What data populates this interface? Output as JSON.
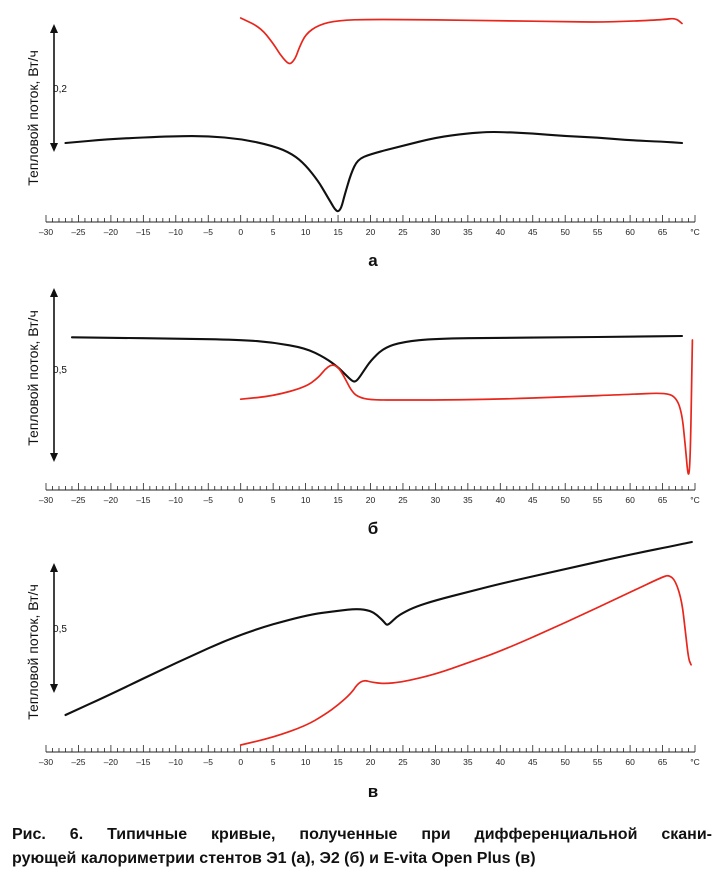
{
  "colors": {
    "black_curve": "#111111",
    "red_curve": "#e8261c",
    "axis": "#222222"
  },
  "chart_data": [
    {
      "type": "line",
      "panel": "а",
      "ylabel": "Тепловой поток, Вт/ч",
      "y_mark": "0,2",
      "xlim": [
        -30,
        70
      ],
      "x_ticks": [
        "–30",
        "–25",
        "–20",
        "–15",
        "–10",
        "–5",
        "0",
        "5",
        "10",
        "15",
        "20",
        "25",
        "30",
        "35",
        "40",
        "45",
        "50",
        "55",
        "60",
        "65",
        "°C"
      ],
      "series": [
        {
          "color": "black",
          "x": [
            -27,
            -20,
            -10,
            -5,
            0,
            5,
            8,
            10,
            12,
            13,
            14,
            14.5,
            15,
            15.5,
            16,
            17,
            18,
            20,
            25,
            30,
            35,
            38,
            40,
            45,
            50,
            55,
            60,
            65,
            68
          ],
          "y": [
            0.5,
            0.47,
            0.45,
            0.45,
            0.47,
            0.52,
            0.58,
            0.66,
            0.78,
            0.86,
            0.94,
            0.98,
            1.0,
            0.97,
            0.88,
            0.72,
            0.62,
            0.58,
            0.52,
            0.46,
            0.43,
            0.42,
            0.42,
            0.43,
            0.45,
            0.46,
            0.48,
            0.49,
            0.5
          ]
        },
        {
          "color": "red",
          "x": [
            0,
            3,
            5,
            6,
            7,
            7.5,
            8,
            8.5,
            9,
            10,
            12,
            15,
            20,
            30,
            40,
            50,
            55,
            60,
            65,
            67,
            68
          ],
          "y": [
            0.0,
            0.2,
            0.55,
            0.78,
            0.95,
            1.0,
            0.96,
            0.85,
            0.65,
            0.35,
            0.15,
            0.05,
            0.03,
            0.04,
            0.06,
            0.08,
            0.09,
            0.07,
            0.04,
            0.0,
            0.12
          ]
        }
      ]
    },
    {
      "type": "line",
      "panel": "б",
      "ylabel": "Тепловой поток, Вт/ч",
      "y_mark": "0,5",
      "xlim": [
        -30,
        70
      ],
      "x_ticks": [
        "–30",
        "–25",
        "–20",
        "–15",
        "–10",
        "–5",
        "0",
        "5",
        "10",
        "15",
        "20",
        "25",
        "30",
        "35",
        "40",
        "45",
        "50",
        "55",
        "60",
        "65",
        "°C"
      ],
      "series": [
        {
          "color": "black",
          "x": [
            -26,
            -20,
            -10,
            0,
            5,
            10,
            13,
            15,
            16,
            17,
            17.5,
            18,
            19,
            20,
            22,
            25,
            30,
            40,
            50,
            60,
            68
          ],
          "y": [
            0.48,
            0.49,
            0.5,
            0.52,
            0.56,
            0.65,
            0.8,
            0.95,
            1.05,
            1.15,
            1.18,
            1.15,
            1.0,
            0.85,
            0.65,
            0.55,
            0.5,
            0.49,
            0.48,
            0.47,
            0.46
          ]
        },
        {
          "color": "red",
          "x": [
            0,
            5,
            10,
            12,
            13,
            14,
            15,
            16,
            17,
            18,
            20,
            25,
            30,
            40,
            50,
            60,
            65,
            67,
            68,
            68.5,
            69,
            69.3,
            69.6
          ],
          "y": [
            1.03,
            0.99,
            0.88,
            0.76,
            0.66,
            0.6,
            0.63,
            0.76,
            0.92,
            1.0,
            1.04,
            1.04,
            1.04,
            1.03,
            1.0,
            0.97,
            0.95,
            0.99,
            1.2,
            1.6,
            2.05,
            1.7,
            0.3
          ]
        }
      ]
    },
    {
      "type": "line",
      "panel": "в",
      "ylabel": "Тепловой поток, Вт/ч",
      "y_mark": "0,5",
      "xlim": [
        -30,
        70
      ],
      "x_ticks": [
        "–30",
        "–25",
        "–20",
        "–15",
        "–10",
        "–5",
        "0",
        "5",
        "10",
        "15",
        "20",
        "25",
        "30",
        "35",
        "40",
        "45",
        "50",
        "55",
        "60",
        "65",
        "°C"
      ],
      "series": [
        {
          "color": "black",
          "x": [
            -27,
            -20,
            -10,
            0,
            10,
            15,
            18,
            20,
            21,
            22,
            22.5,
            23,
            24,
            25,
            27,
            30,
            35,
            40,
            50,
            60,
            68,
            69.5
          ],
          "y": [
            0.95,
            0.85,
            0.7,
            0.56,
            0.47,
            0.45,
            0.44,
            0.45,
            0.47,
            0.5,
            0.52,
            0.51,
            0.48,
            0.46,
            0.43,
            0.4,
            0.36,
            0.32,
            0.25,
            0.18,
            0.13,
            0.12
          ]
        },
        {
          "color": "red",
          "x": [
            0,
            5,
            10,
            13,
            15,
            17,
            18,
            19,
            20,
            22,
            25,
            30,
            35,
            40,
            50,
            60,
            65,
            66,
            67,
            68,
            68.5,
            69,
            69.4
          ],
          "y": [
            1.0,
            0.96,
            0.9,
            0.84,
            0.79,
            0.73,
            0.68,
            0.66,
            0.67,
            0.68,
            0.67,
            0.63,
            0.57,
            0.51,
            0.36,
            0.2,
            0.12,
            0.11,
            0.14,
            0.25,
            0.4,
            0.55,
            0.58
          ]
        }
      ]
    }
  ],
  "caption": {
    "line1": "Рис. 6. Типичные кривые, полученные при дифференциальной скани-",
    "line2": "рующей калориметрии стентов Э1 (а), Э2 (б) и E-vita Open Plus (в)"
  }
}
